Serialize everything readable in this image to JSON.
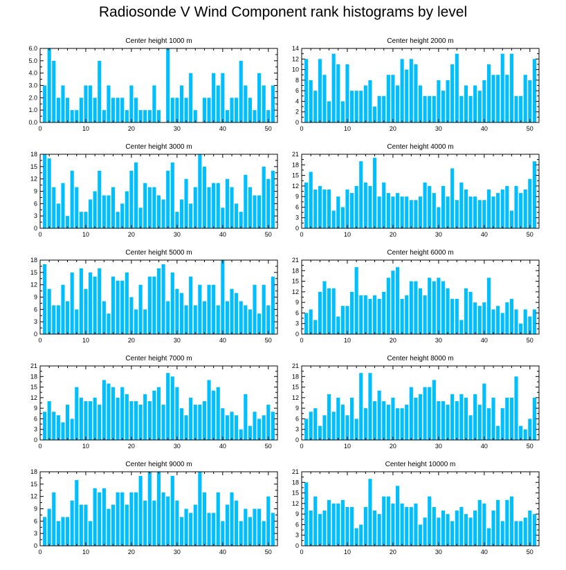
{
  "page": {
    "title": "Radiosonde V Wind Component rank histograms by level"
  },
  "colors": {
    "bar": "#00BFFF",
    "axis": "#000000",
    "background": "#FFFFFF"
  },
  "chart_data": [
    {
      "type": "bar",
      "title": "Center height 1000 m",
      "x": [
        1,
        2,
        3,
        4,
        5,
        6,
        7,
        8,
        9,
        10,
        11,
        12,
        13,
        14,
        15,
        16,
        17,
        18,
        19,
        20,
        21,
        22,
        23,
        24,
        25,
        26,
        27,
        28,
        29,
        30,
        31,
        32,
        33,
        34,
        35,
        36,
        37,
        38,
        39,
        40,
        41,
        42,
        43,
        44,
        45,
        46,
        47,
        48,
        49,
        50,
        51
      ],
      "values": [
        3,
        6,
        5,
        2,
        3,
        2,
        1,
        1,
        2,
        3,
        3,
        2,
        5,
        1,
        3,
        2,
        2,
        2,
        1,
        3,
        2,
        1,
        1,
        1,
        3,
        1,
        0,
        6,
        2,
        2,
        3,
        2,
        4,
        1,
        0,
        2,
        2,
        4,
        3,
        4,
        1,
        2,
        2,
        5,
        3,
        2,
        1,
        4,
        3,
        1,
        3
      ],
      "xlim": [
        0,
        52
      ],
      "ylim": [
        0,
        6
      ],
      "yticks": [
        "0.0",
        "1.0",
        "2.0",
        "3.0",
        "4.0",
        "5.0",
        "6.0"
      ],
      "xticks": [
        "0",
        "10",
        "20",
        "30",
        "40",
        "50"
      ]
    },
    {
      "type": "bar",
      "title": "Center height 2000 m",
      "x": [
        1,
        2,
        3,
        4,
        5,
        6,
        7,
        8,
        9,
        10,
        11,
        12,
        13,
        14,
        15,
        16,
        17,
        18,
        19,
        20,
        21,
        22,
        23,
        24,
        25,
        26,
        27,
        28,
        29,
        30,
        31,
        32,
        33,
        34,
        35,
        36,
        37,
        38,
        39,
        40,
        41,
        42,
        43,
        44,
        45,
        46,
        47,
        48,
        49,
        50,
        51
      ],
      "values": [
        12,
        8,
        6,
        12,
        9,
        4,
        13,
        11,
        4,
        11,
        6,
        6,
        6,
        7,
        8,
        3,
        5,
        5,
        9,
        9,
        7,
        12,
        10,
        12,
        11,
        7,
        5,
        5,
        5,
        8,
        6,
        8,
        11,
        13,
        5,
        7,
        5,
        7,
        6,
        8,
        11,
        9,
        9,
        13,
        9,
        13,
        5,
        5,
        9,
        8,
        12
      ],
      "xlim": [
        0,
        52
      ],
      "ylim": [
        0,
        14
      ],
      "yticks": [
        "0",
        "2",
        "4",
        "6",
        "8",
        "10",
        "12",
        "14"
      ],
      "xticks": [
        "0",
        "10",
        "20",
        "30",
        "40",
        "50"
      ]
    },
    {
      "type": "bar",
      "title": "Center height 3000 m",
      "x": [
        1,
        2,
        3,
        4,
        5,
        6,
        7,
        8,
        9,
        10,
        11,
        12,
        13,
        14,
        15,
        16,
        17,
        18,
        19,
        20,
        21,
        22,
        23,
        24,
        25,
        26,
        27,
        28,
        29,
        30,
        31,
        32,
        33,
        34,
        35,
        36,
        37,
        38,
        39,
        40,
        41,
        42,
        43,
        44,
        45,
        46,
        47,
        48,
        49,
        50,
        51
      ],
      "values": [
        18,
        17,
        10,
        6,
        11,
        3,
        14,
        10,
        4,
        4,
        7,
        9,
        14,
        8,
        8,
        10,
        4,
        6,
        9,
        14,
        16,
        5,
        11,
        10,
        10,
        8,
        7,
        14,
        16,
        4,
        7,
        12,
        6,
        10,
        18,
        15,
        10,
        11,
        11,
        5,
        12,
        10,
        6,
        4,
        13,
        10,
        8,
        8,
        15,
        12,
        14
      ],
      "xlim": [
        0,
        52
      ],
      "ylim": [
        0,
        18
      ],
      "yticks": [
        "0",
        "3",
        "6",
        "9",
        "12",
        "15",
        "18"
      ],
      "xticks": [
        "0",
        "10",
        "20",
        "30",
        "40",
        "50"
      ]
    },
    {
      "type": "bar",
      "title": "Center height 4000 m",
      "x": [
        1,
        2,
        3,
        4,
        5,
        6,
        7,
        8,
        9,
        10,
        11,
        12,
        13,
        14,
        15,
        16,
        17,
        18,
        19,
        20,
        21,
        22,
        23,
        24,
        25,
        26,
        27,
        28,
        29,
        30,
        31,
        32,
        33,
        34,
        35,
        36,
        37,
        38,
        39,
        40,
        41,
        42,
        43,
        44,
        45,
        46,
        47,
        48,
        49,
        50,
        51
      ],
      "values": [
        13,
        16,
        11,
        12,
        11,
        11,
        5,
        9,
        6,
        11,
        10,
        12,
        19,
        13,
        12,
        20,
        9,
        13,
        10,
        9,
        10,
        9,
        9,
        8,
        8,
        9,
        13,
        12,
        10,
        6,
        12,
        9,
        17,
        8,
        13,
        11,
        9,
        9,
        8,
        8,
        11,
        9,
        10,
        11,
        12,
        5,
        12,
        10,
        11,
        14,
        19
      ],
      "xlim": [
        0,
        52
      ],
      "ylim": [
        0,
        21
      ],
      "yticks": [
        "0",
        "3",
        "6",
        "9",
        "12",
        "15",
        "18",
        "21"
      ],
      "xticks": [
        "0",
        "10",
        "20",
        "30",
        "40",
        "50"
      ]
    },
    {
      "type": "bar",
      "title": "Center height 5000 m",
      "x": [
        1,
        2,
        3,
        4,
        5,
        6,
        7,
        8,
        9,
        10,
        11,
        12,
        13,
        14,
        15,
        16,
        17,
        18,
        19,
        20,
        21,
        22,
        23,
        24,
        25,
        26,
        27,
        28,
        29,
        30,
        31,
        32,
        33,
        34,
        35,
        36,
        37,
        38,
        39,
        40,
        41,
        42,
        43,
        44,
        45,
        46,
        47,
        48,
        49,
        50,
        51
      ],
      "values": [
        17,
        11,
        7,
        7,
        12,
        8,
        15,
        6,
        16,
        11,
        15,
        14,
        16,
        8,
        5,
        14,
        13,
        13,
        15,
        9,
        6,
        12,
        6,
        14,
        14,
        16,
        17,
        8,
        15,
        11,
        10,
        7,
        14,
        7,
        12,
        8,
        12,
        12,
        7,
        18,
        8,
        11,
        10,
        8,
        7,
        6,
        12,
        5,
        12,
        7,
        14
      ],
      "xlim": [
        0,
        52
      ],
      "ylim": [
        0,
        18
      ],
      "yticks": [
        "0",
        "3",
        "6",
        "9",
        "12",
        "15",
        "18"
      ],
      "xticks": [
        "0",
        "10",
        "20",
        "30",
        "40",
        "50"
      ]
    },
    {
      "type": "bar",
      "title": "Center height 6000 m",
      "x": [
        1,
        2,
        3,
        4,
        5,
        6,
        7,
        8,
        9,
        10,
        11,
        12,
        13,
        14,
        15,
        16,
        17,
        18,
        19,
        20,
        21,
        22,
        23,
        24,
        25,
        26,
        27,
        28,
        29,
        30,
        31,
        32,
        33,
        34,
        35,
        36,
        37,
        38,
        39,
        40,
        41,
        42,
        43,
        44,
        45,
        46,
        47,
        48,
        49,
        50,
        51
      ],
      "values": [
        6,
        7,
        4,
        12,
        15,
        13,
        13,
        5,
        8,
        8,
        12,
        19,
        11,
        11,
        10,
        11,
        10,
        12,
        16,
        18,
        19,
        10,
        11,
        15,
        15,
        13,
        11,
        16,
        15,
        16,
        15,
        13,
        10,
        10,
        4,
        13,
        12,
        9,
        8,
        9,
        16,
        7,
        8,
        6,
        9,
        10,
        7,
        3,
        7,
        5,
        7
      ],
      "xlim": [
        0,
        52
      ],
      "ylim": [
        0,
        21
      ],
      "yticks": [
        "0",
        "3",
        "6",
        "9",
        "12",
        "15",
        "18",
        "21"
      ],
      "xticks": [
        "0",
        "10",
        "20",
        "30",
        "40",
        "50"
      ]
    },
    {
      "type": "bar",
      "title": "Center height 7000 m",
      "x": [
        1,
        2,
        3,
        4,
        5,
        6,
        7,
        8,
        9,
        10,
        11,
        12,
        13,
        14,
        15,
        16,
        17,
        18,
        19,
        20,
        21,
        22,
        23,
        24,
        25,
        26,
        27,
        28,
        29,
        30,
        31,
        32,
        33,
        34,
        35,
        36,
        37,
        38,
        39,
        40,
        41,
        42,
        43,
        44,
        45,
        46,
        47,
        48,
        49,
        50,
        51
      ],
      "values": [
        8,
        11,
        8,
        7,
        5,
        10,
        6,
        15,
        12,
        11,
        11,
        12,
        10,
        17,
        16,
        15,
        12,
        15,
        13,
        11,
        11,
        10,
        13,
        11,
        14,
        15,
        10,
        19,
        18,
        15,
        9,
        7,
        12,
        10,
        10,
        11,
        17,
        14,
        15,
        9,
        7,
        8,
        7,
        3,
        13,
        4,
        8,
        6,
        7,
        10,
        8
      ],
      "xlim": [
        0,
        52
      ],
      "ylim": [
        0,
        21
      ],
      "yticks": [
        "0",
        "3",
        "6",
        "9",
        "12",
        "15",
        "18",
        "21"
      ],
      "xticks": [
        "0",
        "10",
        "20",
        "30",
        "40",
        "50"
      ]
    },
    {
      "type": "bar",
      "title": "Center height 8000 m",
      "x": [
        1,
        2,
        3,
        4,
        5,
        6,
        7,
        8,
        9,
        10,
        11,
        12,
        13,
        14,
        15,
        16,
        17,
        18,
        19,
        20,
        21,
        22,
        23,
        24,
        25,
        26,
        27,
        28,
        29,
        30,
        31,
        32,
        33,
        34,
        35,
        36,
        37,
        38,
        39,
        40,
        41,
        42,
        43,
        44,
        45,
        46,
        47,
        48,
        49,
        50,
        51
      ],
      "values": [
        6,
        8,
        9,
        4,
        7,
        13,
        8,
        12,
        10,
        7,
        12,
        6,
        19,
        9,
        19,
        11,
        14,
        11,
        10,
        12,
        9,
        9,
        10,
        15,
        12,
        13,
        15,
        15,
        17,
        11,
        11,
        10,
        13,
        11,
        13,
        12,
        7,
        13,
        10,
        16,
        9,
        12,
        4,
        9,
        12,
        12,
        18,
        4,
        3,
        6,
        12
      ],
      "xlim": [
        0,
        52
      ],
      "ylim": [
        0,
        21
      ],
      "yticks": [
        "0",
        "3",
        "6",
        "9",
        "12",
        "15",
        "18",
        "21"
      ],
      "xticks": [
        "0",
        "10",
        "20",
        "30",
        "40",
        "50"
      ]
    },
    {
      "type": "bar",
      "title": "Center height 9000 m",
      "x": [
        1,
        2,
        3,
        4,
        5,
        6,
        7,
        8,
        9,
        10,
        11,
        12,
        13,
        14,
        15,
        16,
        17,
        18,
        19,
        20,
        21,
        22,
        23,
        24,
        25,
        26,
        27,
        28,
        29,
        30,
        31,
        32,
        33,
        34,
        35,
        36,
        37,
        38,
        39,
        40,
        41,
        42,
        43,
        44,
        45,
        46,
        47,
        48,
        49,
        50,
        51
      ],
      "values": [
        7,
        9,
        13,
        6,
        7,
        7,
        11,
        16,
        10,
        10,
        6,
        14,
        13,
        14,
        9,
        10,
        13,
        13,
        10,
        13,
        13,
        17,
        11,
        18,
        11,
        18,
        13,
        12,
        17,
        11,
        7,
        9,
        8,
        10,
        18,
        13,
        8,
        8,
        13,
        6,
        10,
        13,
        11,
        6,
        9,
        7,
        9,
        9,
        6,
        12,
        8
      ],
      "xlim": [
        0,
        52
      ],
      "ylim": [
        0,
        18
      ],
      "yticks": [
        "0",
        "3",
        "6",
        "9",
        "12",
        "15",
        "18"
      ],
      "xticks": [
        "0",
        "10",
        "20",
        "30",
        "40",
        "50"
      ]
    },
    {
      "type": "bar",
      "title": "Center height 10000 m",
      "x": [
        1,
        2,
        3,
        4,
        5,
        6,
        7,
        8,
        9,
        10,
        11,
        12,
        13,
        14,
        15,
        16,
        17,
        18,
        19,
        20,
        21,
        22,
        23,
        24,
        25,
        26,
        27,
        28,
        29,
        30,
        31,
        32,
        33,
        34,
        35,
        36,
        37,
        38,
        39,
        40,
        41,
        42,
        43,
        44,
        45,
        46,
        47,
        48,
        49,
        50,
        51
      ],
      "values": [
        18,
        10,
        14,
        9,
        10,
        13,
        12,
        12,
        13,
        11,
        11,
        5,
        6,
        11,
        19,
        10,
        9,
        14,
        14,
        12,
        17,
        12,
        11,
        11,
        12,
        6,
        8,
        14,
        11,
        8,
        10,
        9,
        7,
        10,
        11,
        9,
        8,
        10,
        13,
        12,
        5,
        10,
        13,
        7,
        13,
        14,
        7,
        7,
        8,
        10,
        9
      ],
      "xlim": [
        0,
        52
      ],
      "ylim": [
        0,
        21
      ],
      "yticks": [
        "0",
        "3",
        "6",
        "9",
        "12",
        "15",
        "18",
        "21"
      ],
      "xticks": [
        "0",
        "10",
        "20",
        "30",
        "40",
        "50"
      ]
    }
  ]
}
